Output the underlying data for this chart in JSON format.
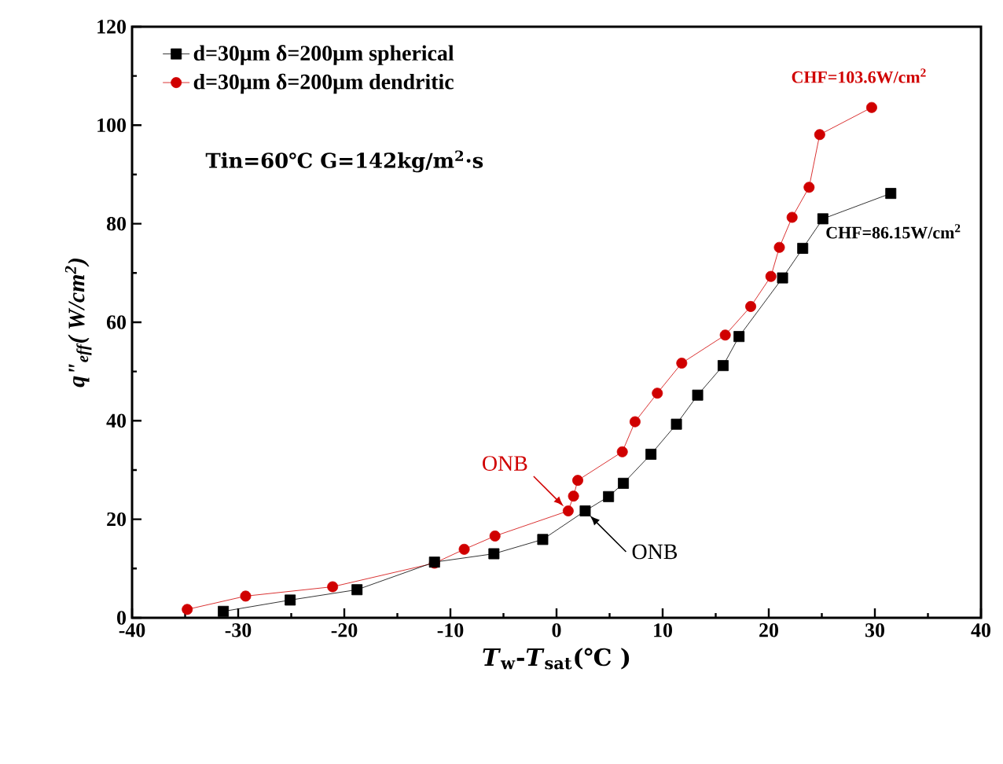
{
  "chart_data": {
    "type": "line",
    "xlabel": "*T*$_{w}$-*T*$_{sat}$(℃ )",
    "ylabel": "q\"$_{eff}$( W/cm$^{2}$)",
    "series": [
      {
        "name": "d=30μm δ=200μm  spherical",
        "color": "#000000",
        "marker": "square",
        "x": [
          -31.4,
          -25.1,
          -18.8,
          -11.5,
          -5.9,
          -1.3,
          2.7,
          4.9,
          6.3,
          8.9,
          11.3,
          13.3,
          15.7,
          17.2,
          21.3,
          23.2,
          25.1,
          31.5
        ],
        "values": [
          1.3,
          3.6,
          5.7,
          11.3,
          13.0,
          15.9,
          21.7,
          24.6,
          27.3,
          33.2,
          39.3,
          45.2,
          51.2,
          57.1,
          69.0,
          75.0,
          81.0,
          86.15
        ]
      },
      {
        "name": "d=30μm δ=200μm  dendritic",
        "color": "#d00000",
        "marker": "circle",
        "x": [
          -34.8,
          -29.3,
          -21.1,
          -11.5,
          -8.7,
          -5.8,
          1.1,
          1.6,
          2.0,
          6.2,
          7.4,
          9.5,
          11.8,
          15.9,
          18.3,
          20.2,
          21.0,
          22.2,
          23.8,
          24.8,
          29.7
        ],
        "values": [
          1.7,
          4.4,
          6.3,
          11.1,
          13.9,
          16.6,
          21.7,
          24.7,
          27.9,
          33.7,
          39.8,
          45.6,
          51.7,
          57.4,
          63.2,
          69.3,
          75.2,
          81.3,
          87.4,
          98.1,
          103.6
        ]
      }
    ],
    "annotations": [
      "Tin=60℃     G=142kg/m$^{2}$·s",
      {
        "text": "CHF=103.6W/cm$^{2}$",
        "x": 29.7,
        "y": 103.6
      },
      {
        "text": "CHF=86.15W/cm$^{2}$",
        "x": 31.5,
        "y": 86.15
      },
      {
        "text": "ONB",
        "x": 1.1,
        "y": 21.7
      },
      {
        "text": "ONB",
        "x": 2.7,
        "y": 21.7
      }
    ],
    "xlim": [
      -40,
      40
    ],
    "ylim": [
      0,
      120
    ],
    "xticks": [
      -40,
      -30,
      -20,
      -10,
      0,
      10,
      20,
      30,
      40
    ],
    "yticks": [
      0,
      20,
      40,
      60,
      80,
      100,
      120
    ],
    "grid": false,
    "legend": "top left",
    "line_style": "solid"
  }
}
